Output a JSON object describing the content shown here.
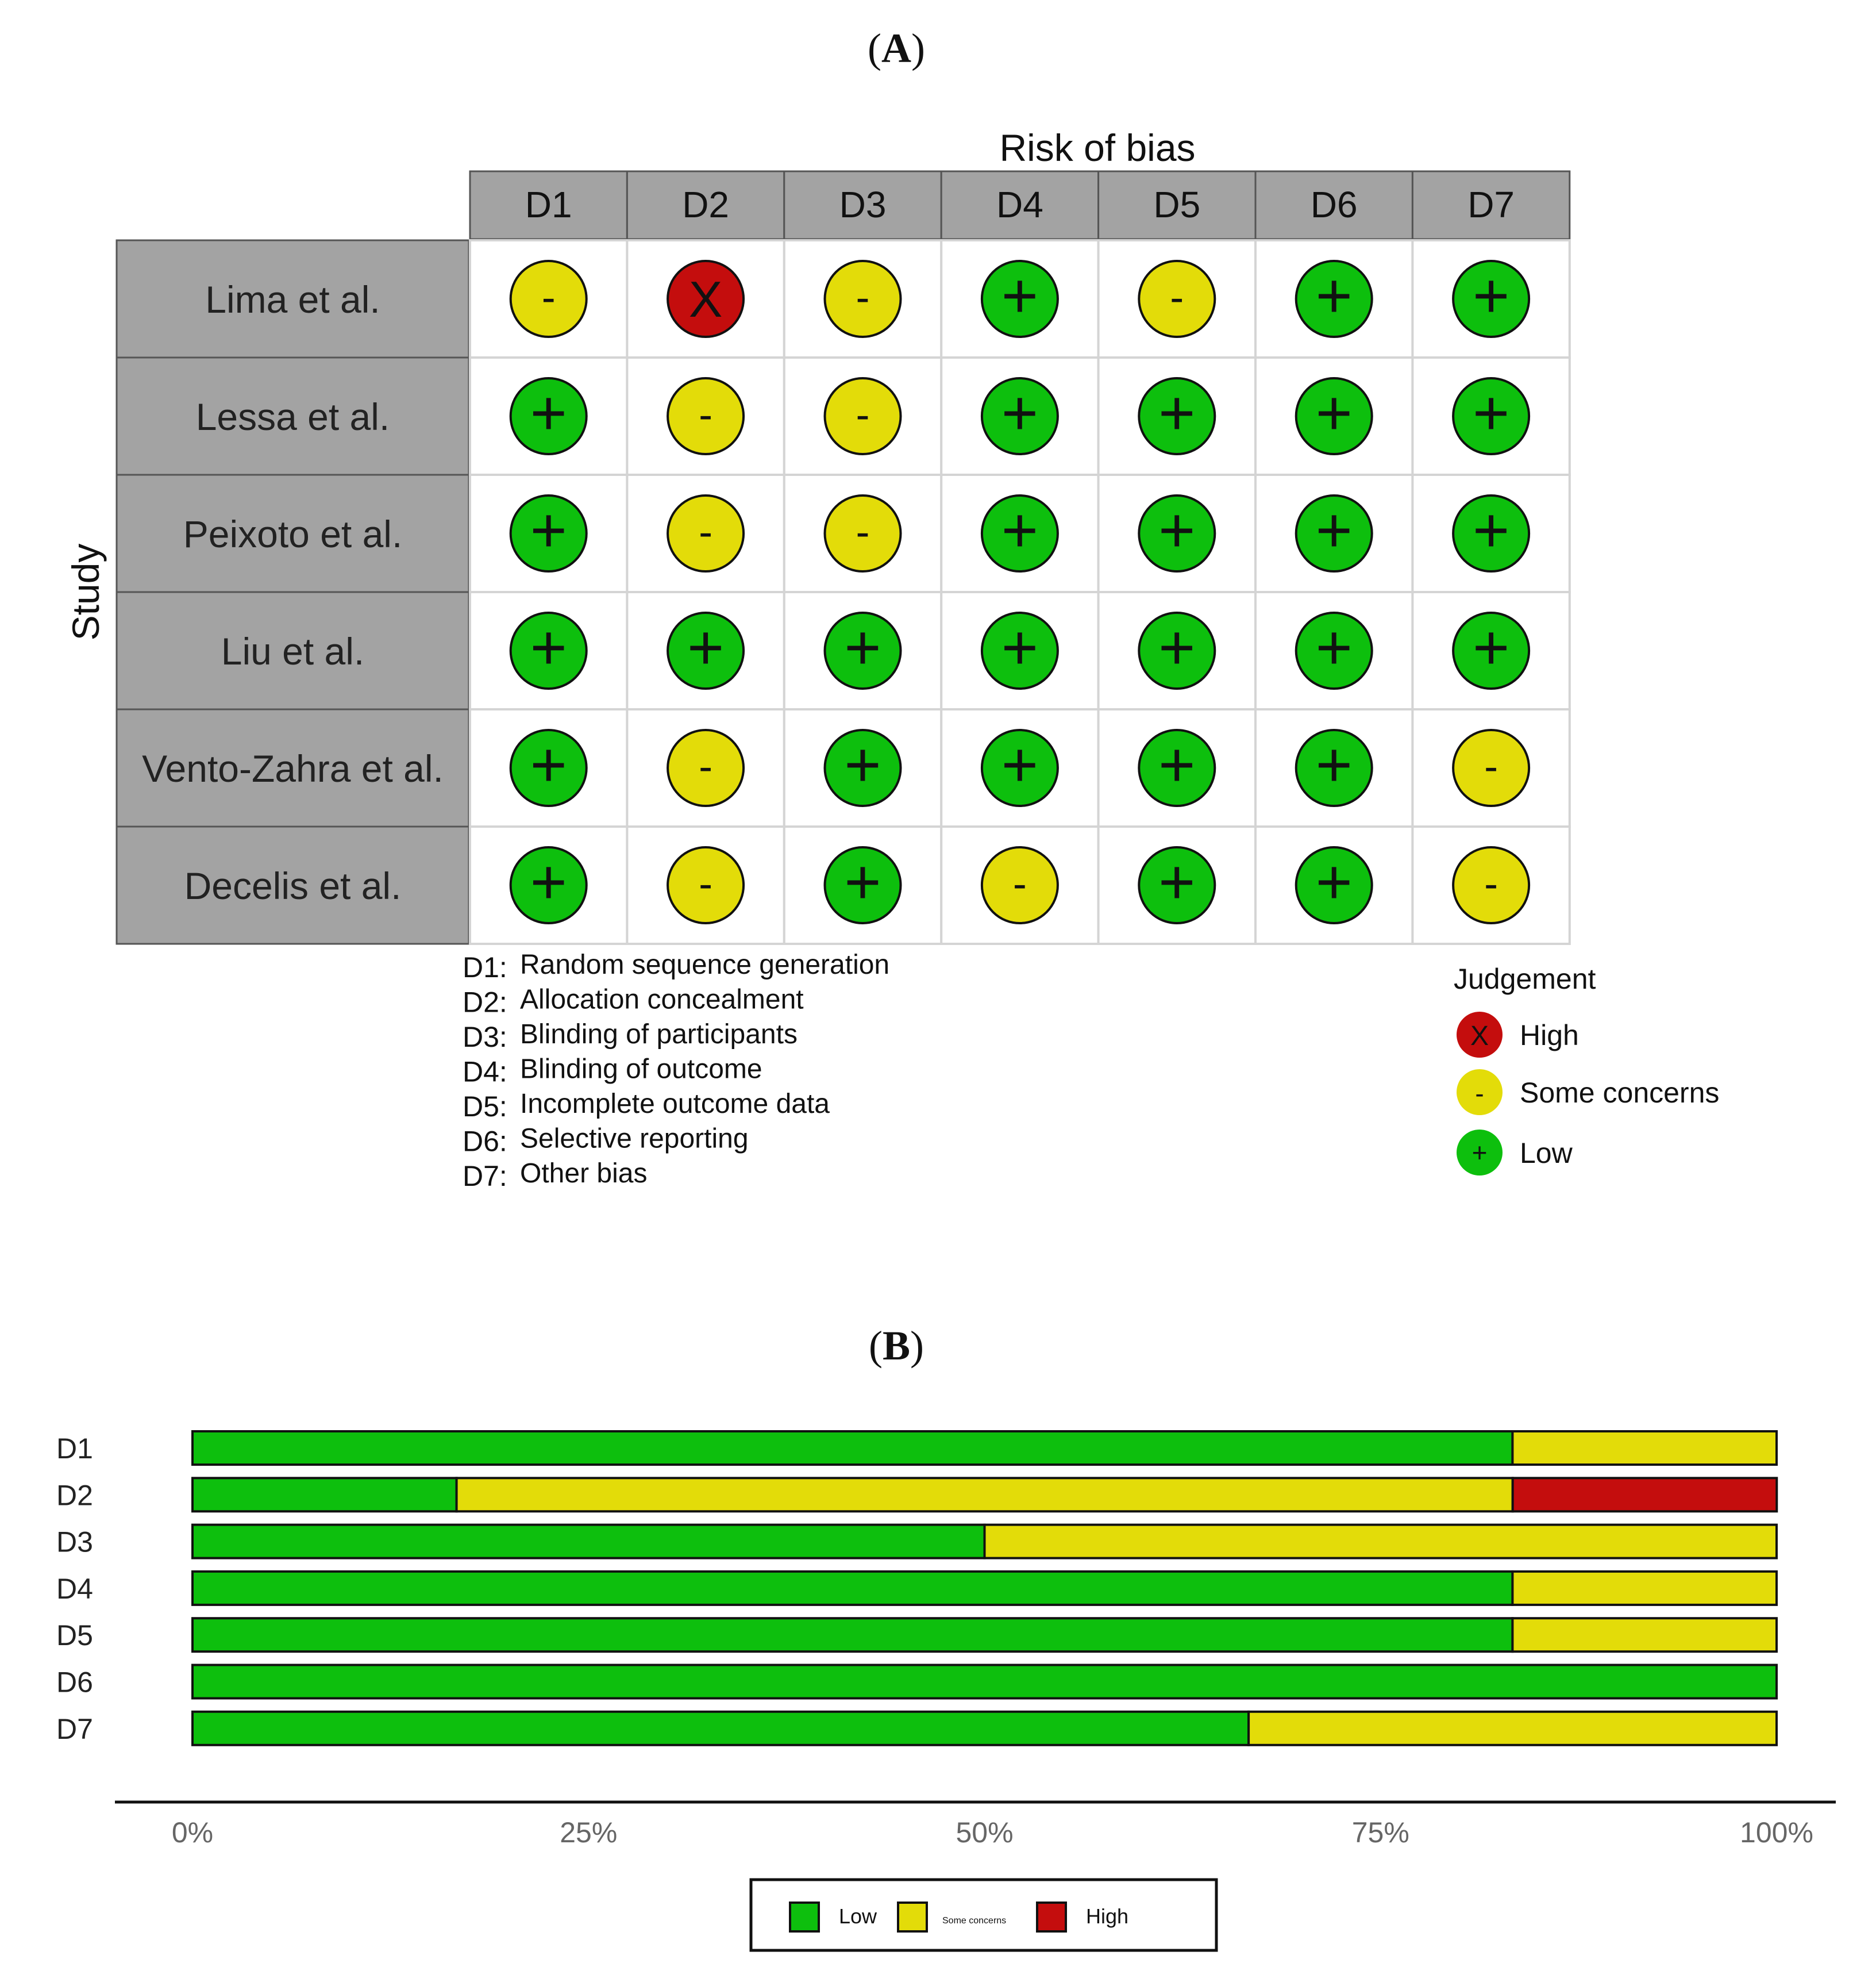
{
  "panel_a": {
    "label_open": "(",
    "label_letter": "A",
    "label_close": ")"
  },
  "panel_b": {
    "label_open": "(",
    "label_letter": "B",
    "label_close": ")"
  },
  "colors": {
    "low": "#0dbf0d",
    "some": "#e3dc09",
    "high": "#c40d0d",
    "header_gray": "#a3a3a3",
    "grid_line": "#d4d4d4"
  },
  "chart_data": [
    {
      "type": "table",
      "title": "Risk of bias",
      "ylabel": "Study",
      "domains": [
        "D1",
        "D2",
        "D3",
        "D4",
        "D5",
        "D6",
        "D7"
      ],
      "studies": [
        {
          "name": "Lima et al.",
          "judgements": [
            "some",
            "high",
            "some",
            "low",
            "some",
            "low",
            "low"
          ]
        },
        {
          "name": "Lessa et al.",
          "judgements": [
            "low",
            "some",
            "some",
            "low",
            "low",
            "low",
            "low"
          ]
        },
        {
          "name": "Peixoto et al.",
          "judgements": [
            "low",
            "some",
            "some",
            "low",
            "low",
            "low",
            "low"
          ]
        },
        {
          "name": "Liu et al.",
          "judgements": [
            "low",
            "low",
            "low",
            "low",
            "low",
            "low",
            "low"
          ]
        },
        {
          "name": "Vento-Zahra et al.",
          "judgements": [
            "low",
            "some",
            "low",
            "low",
            "low",
            "low",
            "some"
          ]
        },
        {
          "name": "Decelis et al.",
          "judgements": [
            "low",
            "some",
            "low",
            "some",
            "low",
            "low",
            "some"
          ]
        }
      ],
      "symbols": {
        "high": "X",
        "some": "-",
        "low": "+"
      },
      "domain_definitions": [
        {
          "code": "D1:",
          "text": "Random sequence generation"
        },
        {
          "code": "D2:",
          "text": "Allocation concealment"
        },
        {
          "code": "D3:",
          "text": "Blinding of participants"
        },
        {
          "code": "D4:",
          "text": "Blinding of outcome"
        },
        {
          "code": "D5:",
          "text": "Incomplete outcome data"
        },
        {
          "code": "D6:",
          "text": "Selective reporting"
        },
        {
          "code": "D7:",
          "text": "Other bias"
        }
      ],
      "legend": {
        "title": "Judgement",
        "items": [
          {
            "key": "high",
            "label": "High"
          },
          {
            "key": "some",
            "label": "Some concerns"
          },
          {
            "key": "low",
            "label": "Low"
          }
        ]
      }
    },
    {
      "type": "bar",
      "orientation": "horizontal",
      "stacked": true,
      "categories": [
        "D1",
        "D2",
        "D3",
        "D4",
        "D5",
        "D6",
        "D7"
      ],
      "series": [
        {
          "key": "low",
          "name": "Low",
          "values": [
            83.33,
            16.67,
            50,
            83.33,
            83.33,
            100,
            66.67
          ]
        },
        {
          "key": "some",
          "name": "Some concerns",
          "values": [
            16.67,
            66.67,
            50,
            16.67,
            16.67,
            0,
            33.33
          ]
        },
        {
          "key": "high",
          "name": "High",
          "values": [
            0,
            16.67,
            0,
            0,
            0,
            0,
            0
          ]
        }
      ],
      "xlim": [
        0,
        100
      ],
      "xticks": [
        0,
        25,
        50,
        75,
        100
      ],
      "xtick_labels": [
        "0%",
        "25%",
        "50%",
        "75%",
        "100%"
      ],
      "legend": {
        "position": "bottom",
        "items": [
          {
            "key": "low",
            "label": "Low"
          },
          {
            "key": "some",
            "label": "Some concerns"
          },
          {
            "key": "high",
            "label": "High"
          }
        ]
      }
    }
  ]
}
